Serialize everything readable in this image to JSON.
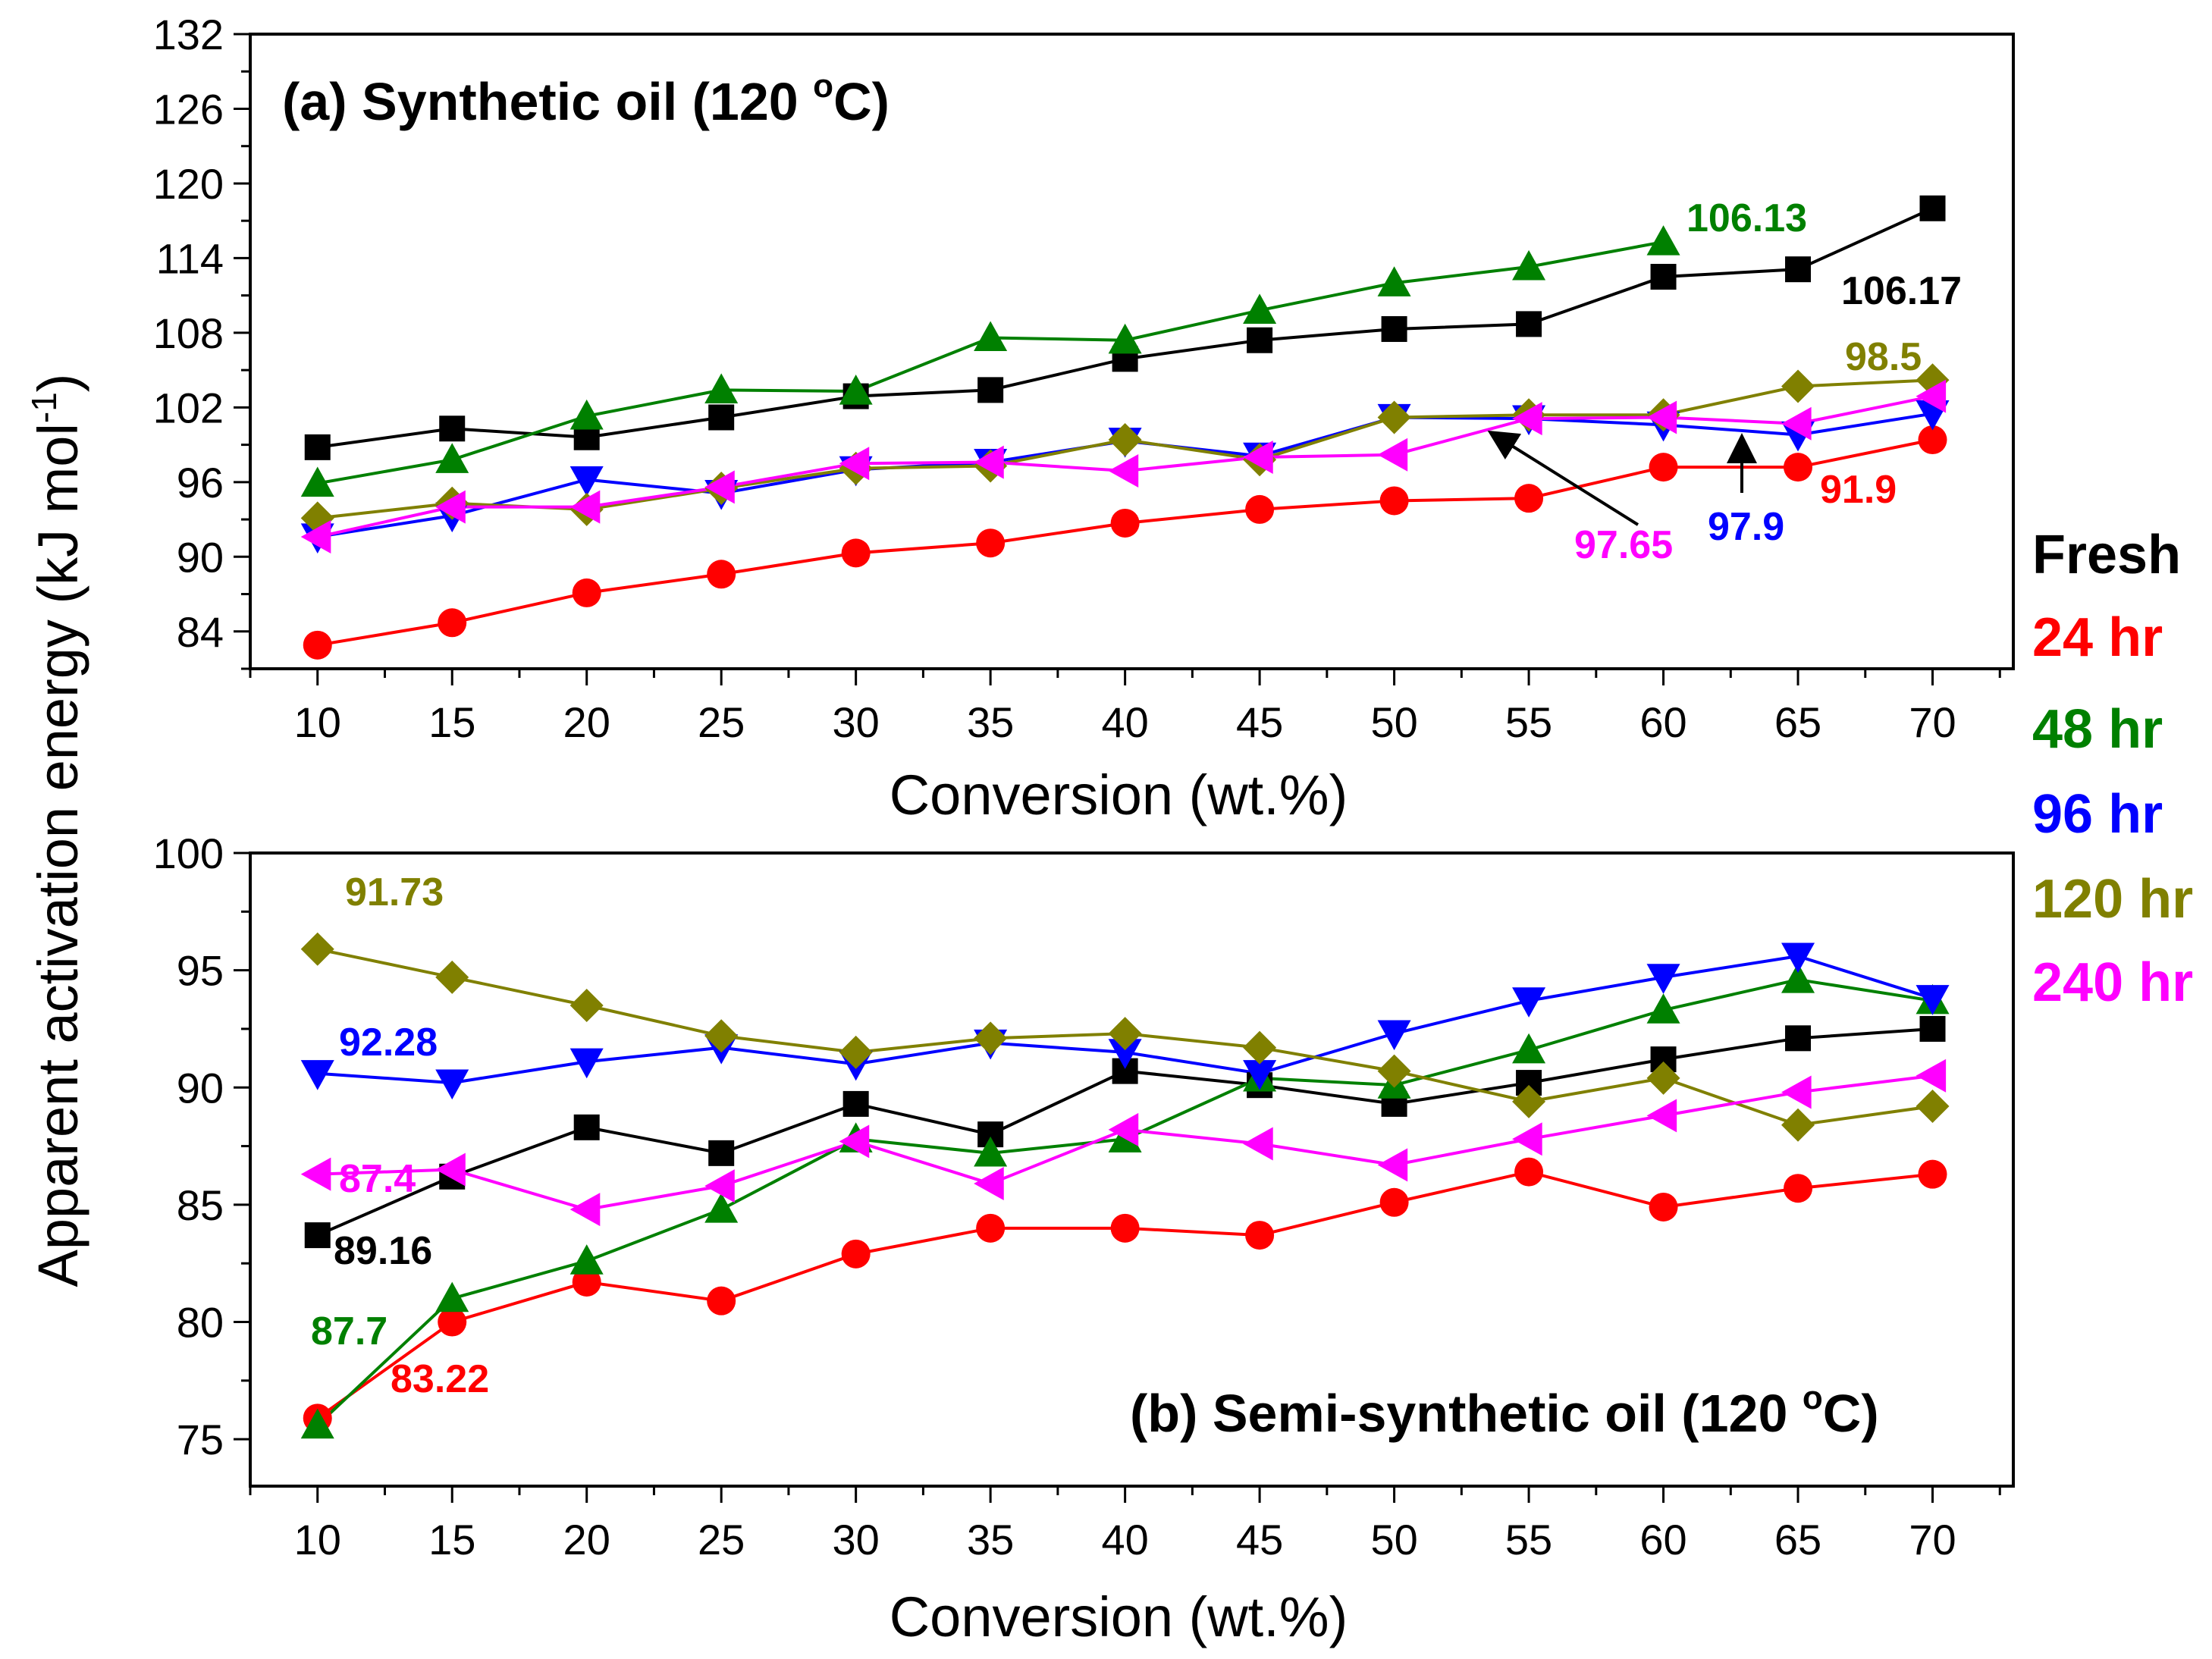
{
  "ylabel": "Apparent activation energy (kJ mol",
  "ylabel_sup": "-1",
  "ylabel_close": ")",
  "legend": [
    {
      "label": "Fresh",
      "color": "#000000"
    },
    {
      "label": "24 hr",
      "color": "#ff0000"
    },
    {
      "label": "48 hr",
      "color": "#008000"
    },
    {
      "label": "96 hr",
      "color": "#0000ff"
    },
    {
      "label": "120 hr",
      "color": "#808000"
    },
    {
      "label": "240 hr",
      "color": "#ff00ff"
    }
  ],
  "chart_data": [
    {
      "type": "line",
      "title_main": "(a) Synthetic oil (120 ",
      "title_sup": "o",
      "title_end": "C)",
      "xlabel": "Conversion (wt.%)",
      "xlim": [
        7.5,
        73
      ],
      "ylim": [
        81,
        132
      ],
      "x": [
        10,
        15,
        20,
        25,
        30,
        35,
        40,
        45,
        50,
        55,
        60,
        65,
        70
      ],
      "x_ticks": [
        "10",
        "15",
        "20",
        "25",
        "30",
        "35",
        "40",
        "45",
        "50",
        "55",
        "60",
        "65",
        "70"
      ],
      "y_ticks": [
        "84",
        "90",
        "96",
        "102",
        "108",
        "114",
        "120",
        "126",
        "132"
      ],
      "series": [
        {
          "name": "Fresh",
          "marker": "square",
          "color": "#000000",
          "values": [
            98.8,
            100.3,
            99.6,
            101.2,
            102.9,
            103.4,
            105.9,
            107.4,
            108.3,
            108.7,
            112.5,
            113.1,
            118.0
          ]
        },
        {
          "name": "24 hr",
          "marker": "circle",
          "color": "#ff0000",
          "values": [
            82.9,
            84.7,
            87.1,
            88.6,
            90.3,
            91.1,
            92.7,
            93.8,
            94.5,
            94.7,
            97.2,
            97.2,
            99.4
          ]
        },
        {
          "name": "48 hr",
          "marker": "triangle-up",
          "color": "#008000",
          "values": [
            95.9,
            97.8,
            101.3,
            103.4,
            103.3,
            107.6,
            107.4,
            109.8,
            112.0,
            113.3,
            115.3,
            null,
            null
          ]
        },
        {
          "name": "96 hr",
          "marker": "triangle-down",
          "color": "#0000ff",
          "values": [
            91.6,
            93.3,
            96.2,
            95.1,
            97.0,
            97.6,
            99.3,
            98.1,
            101.2,
            101.1,
            100.6,
            99.8,
            101.5
          ]
        },
        {
          "name": "120 hr",
          "marker": "diamond",
          "color": "#808000",
          "values": [
            93.1,
            94.3,
            93.8,
            95.5,
            97.1,
            97.3,
            99.4,
            97.8,
            101.2,
            101.4,
            101.4,
            103.7,
            104.2
          ]
        },
        {
          "name": "240 hr",
          "marker": "triangle-left",
          "color": "#ff00ff",
          "values": [
            91.6,
            94.0,
            94.0,
            95.6,
            97.5,
            97.6,
            96.9,
            98.0,
            98.2,
            101.1,
            101.2,
            100.7,
            102.9
          ]
        }
      ],
      "annotations": [
        {
          "text": "106.13",
          "series": "48 hr"
        },
        {
          "text": "106.17",
          "series": "Fresh"
        },
        {
          "text": "98.5",
          "series": "120 hr"
        },
        {
          "text": "97.65",
          "series": "240 hr"
        },
        {
          "text": "97.9",
          "series": "96 hr"
        },
        {
          "text": "91.9",
          "series": "24 hr"
        }
      ]
    },
    {
      "type": "line",
      "title_main": "(b) Semi-synthetic oil (120 ",
      "title_sup": "o",
      "title_end": "C)",
      "xlabel": "Conversion (wt.%)",
      "xlim": [
        7.5,
        73
      ],
      "ylim": [
        73,
        100
      ],
      "x": [
        10,
        15,
        20,
        25,
        30,
        35,
        40,
        45,
        50,
        55,
        60,
        65,
        70
      ],
      "x_ticks": [
        "10",
        "15",
        "20",
        "25",
        "30",
        "35",
        "40",
        "45",
        "50",
        "55",
        "60",
        "65",
        "70"
      ],
      "y_ticks": [
        "75",
        "80",
        "85",
        "90",
        "95",
        "100"
      ],
      "series": [
        {
          "name": "Fresh",
          "marker": "square",
          "color": "#000000",
          "values": [
            83.7,
            86.2,
            88.3,
            87.2,
            89.3,
            88.0,
            90.7,
            90.1,
            89.3,
            90.2,
            91.2,
            92.1,
            92.5
          ]
        },
        {
          "name": "24 hr",
          "marker": "circle",
          "color": "#ff0000",
          "values": [
            75.9,
            80.0,
            81.7,
            80.9,
            82.9,
            84.0,
            84.0,
            83.7,
            85.1,
            86.4,
            84.9,
            85.7,
            86.3
          ]
        },
        {
          "name": "48 hr",
          "marker": "triangle-up",
          "color": "#008000",
          "values": [
            75.6,
            81.0,
            82.6,
            84.8,
            87.8,
            87.2,
            87.8,
            90.4,
            90.1,
            91.6,
            93.3,
            94.6,
            93.7
          ]
        },
        {
          "name": "96 hr",
          "marker": "triangle-down",
          "color": "#0000ff",
          "values": [
            90.6,
            90.2,
            91.1,
            91.7,
            91.0,
            91.9,
            91.5,
            90.6,
            92.3,
            93.7,
            94.7,
            95.6,
            93.8
          ]
        },
        {
          "name": "120 hr",
          "marker": "diamond",
          "color": "#808000",
          "values": [
            95.9,
            94.7,
            93.5,
            92.2,
            91.5,
            92.1,
            92.3,
            91.7,
            90.7,
            89.4,
            90.4,
            88.4,
            89.2
          ]
        },
        {
          "name": "240 hr",
          "marker": "triangle-left",
          "color": "#ff00ff",
          "values": [
            86.3,
            86.5,
            84.8,
            85.8,
            87.7,
            85.9,
            88.2,
            87.6,
            86.7,
            87.8,
            88.8,
            89.8,
            90.5
          ]
        }
      ],
      "annotations": [
        {
          "text": "91.73",
          "series": "120 hr"
        },
        {
          "text": "92.28",
          "series": "96 hr"
        },
        {
          "text": "87.4",
          "series": "240 hr"
        },
        {
          "text": "89.16",
          "series": "Fresh"
        },
        {
          "text": "87.7",
          "series": "48 hr"
        },
        {
          "text": "83.22",
          "series": "24 hr"
        }
      ]
    }
  ]
}
